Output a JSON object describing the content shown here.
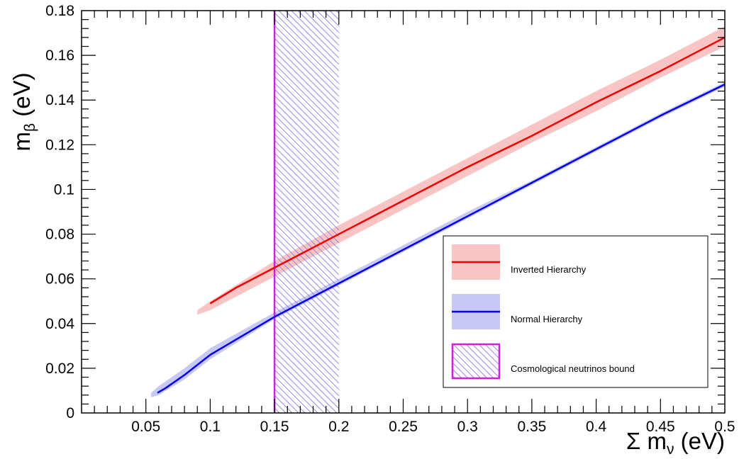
{
  "chart_data": {
    "type": "line",
    "xlabel": {
      "main": "Σ m",
      "sub": "ν",
      "unit": " (eV)"
    },
    "ylabel": {
      "main": "m",
      "sub": "β",
      "unit": " (eV)"
    },
    "xlim": [
      0,
      0.5
    ],
    "ylim": [
      0,
      0.18
    ],
    "x_ticks": [
      {
        "value": 0.05,
        "label": "0.05"
      },
      {
        "value": 0.1,
        "label": "0.1"
      },
      {
        "value": 0.15,
        "label": "0.15"
      },
      {
        "value": 0.2,
        "label": "0.2"
      },
      {
        "value": 0.25,
        "label": "0.25"
      },
      {
        "value": 0.3,
        "label": "0.3"
      },
      {
        "value": 0.35,
        "label": "0.35"
      },
      {
        "value": 0.4,
        "label": "0.4"
      },
      {
        "value": 0.45,
        "label": "0.45"
      },
      {
        "value": 0.5,
        "label": "0.5"
      }
    ],
    "y_ticks": [
      {
        "value": 0,
        "label": "0"
      },
      {
        "value": 0.02,
        "label": "0.02"
      },
      {
        "value": 0.04,
        "label": "0.04"
      },
      {
        "value": 0.06,
        "label": "0.06"
      },
      {
        "value": 0.08,
        "label": "0.08"
      },
      {
        "value": 0.1,
        "label": "0.1"
      },
      {
        "value": 0.12,
        "label": "0.12"
      },
      {
        "value": 0.14,
        "label": "0.14"
      },
      {
        "value": 0.16,
        "label": "0.16"
      },
      {
        "value": 0.18,
        "label": "0.18"
      }
    ],
    "grid": false,
    "legend_position": "bottom-right",
    "series": [
      {
        "name": "Inverted Hierarchy",
        "color": "#ee0000",
        "band_color": "#f8c4c4",
        "x": [
          0.1,
          0.12,
          0.15,
          0.2,
          0.25,
          0.3,
          0.35,
          0.4,
          0.45,
          0.5
        ],
        "y": [
          0.049,
          0.056,
          0.065,
          0.08,
          0.095,
          0.11,
          0.124,
          0.139,
          0.153,
          0.168
        ],
        "band_x": [
          0.09,
          0.1,
          0.15,
          0.2,
          0.25,
          0.3,
          0.35,
          0.4,
          0.45,
          0.5
        ],
        "band_low": [
          0.044,
          0.046,
          0.061,
          0.076,
          0.091,
          0.106,
          0.121,
          0.135,
          0.15,
          0.164
        ],
        "band_high": [
          0.046,
          0.05,
          0.068,
          0.084,
          0.099,
          0.114,
          0.129,
          0.144,
          0.158,
          0.173
        ]
      },
      {
        "name": "Normal Hierarchy",
        "color": "#0000ee",
        "band_color": "#c8c8f4",
        "x": [
          0.059,
          0.065,
          0.08,
          0.1,
          0.15,
          0.2,
          0.25,
          0.3,
          0.35,
          0.4,
          0.45,
          0.5
        ],
        "y": [
          0.009,
          0.011,
          0.017,
          0.026,
          0.043,
          0.058,
          0.073,
          0.088,
          0.103,
          0.118,
          0.133,
          0.147
        ],
        "band_x": [
          0.054,
          0.06,
          0.08,
          0.1,
          0.15,
          0.2,
          0.25,
          0.3,
          0.35,
          0.4,
          0.45,
          0.5
        ],
        "band_low": [
          0.007,
          0.008,
          0.015,
          0.024,
          0.042,
          0.057,
          0.072,
          0.087,
          0.102,
          0.117,
          0.132,
          0.146
        ],
        "band_high": [
          0.009,
          0.012,
          0.02,
          0.029,
          0.045,
          0.06,
          0.075,
          0.09,
          0.104,
          0.119,
          0.134,
          0.148
        ]
      }
    ],
    "bound": {
      "name": "Cosmological neutrinos bound",
      "x_line": 0.15,
      "x_range": [
        0.15,
        0.2
      ],
      "color": "#cc22dd",
      "hatch_color": "#8a7ae0"
    }
  }
}
